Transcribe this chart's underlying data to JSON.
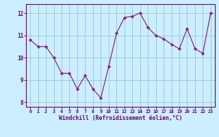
{
  "x": [
    0,
    1,
    2,
    3,
    4,
    5,
    6,
    7,
    8,
    9,
    10,
    11,
    12,
    13,
    14,
    15,
    16,
    17,
    18,
    19,
    20,
    21,
    22,
    23
  ],
  "y": [
    10.8,
    10.5,
    10.5,
    10.0,
    9.3,
    9.3,
    8.6,
    9.2,
    8.6,
    8.2,
    9.6,
    11.1,
    11.8,
    11.85,
    12.0,
    11.35,
    11.0,
    10.85,
    10.6,
    10.4,
    11.3,
    10.4,
    10.2,
    12.0
  ],
  "line_color": "#882288",
  "marker": "D",
  "marker_size": 2.2,
  "bg_color": "#cceeff",
  "grid_color": "#99cccc",
  "xlabel": "Windchill (Refroidissement éolien,°C)",
  "xlabel_color": "#660066",
  "tick_color": "#660066",
  "axis_color": "#660066",
  "ylim": [
    7.8,
    12.4
  ],
  "yticks": [
    8,
    9,
    10,
    11,
    12
  ],
  "xlim": [
    -0.5,
    23.5
  ],
  "xticks": [
    0,
    1,
    2,
    3,
    4,
    5,
    6,
    7,
    8,
    9,
    10,
    11,
    12,
    13,
    14,
    15,
    16,
    17,
    18,
    19,
    20,
    21,
    22,
    23
  ]
}
